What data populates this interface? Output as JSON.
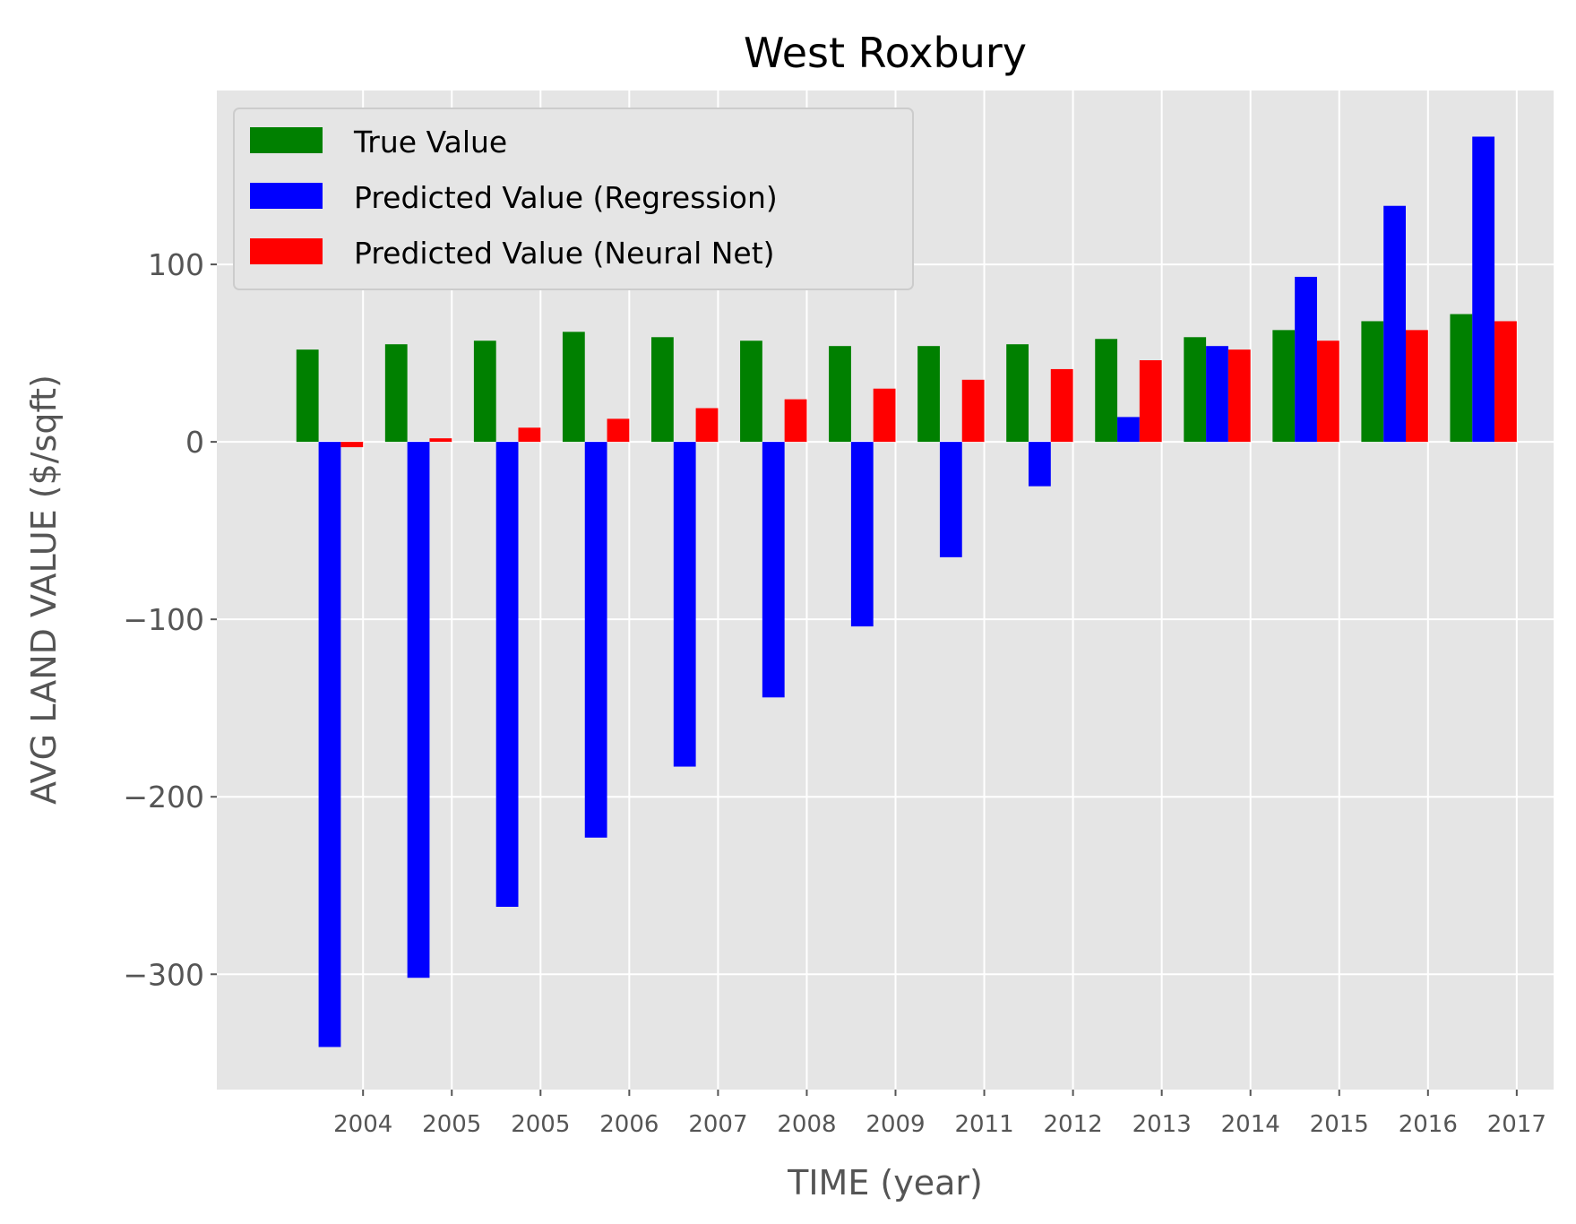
{
  "chart_data": {
    "type": "bar",
    "title": "West Roxbury",
    "xlabel": "TIME (year)",
    "ylabel": "AVG LAND VALUE ($/sqft)",
    "ylim": [
      -365,
      198
    ],
    "yticks": [
      100,
      0,
      -100,
      -200,
      -300
    ],
    "ytick_labels": [
      "100",
      "0",
      "−100",
      "−200",
      "−300"
    ],
    "categories": [
      "2004",
      "2005",
      "2005",
      "2006",
      "2007",
      "2008",
      "2009",
      "2011",
      "2012",
      "2013",
      "2014",
      "2015",
      "2016",
      "2017"
    ],
    "grid": true,
    "legend_position": "top-left",
    "series": [
      {
        "name": "True Value",
        "color": "#008000",
        "values": [
          52,
          55,
          57,
          62,
          59,
          57,
          54,
          54,
          55,
          58,
          59,
          63,
          68,
          72
        ]
      },
      {
        "name": "Predicted Value (Regression)",
        "color": "#0000ff",
        "values": [
          -341,
          -302,
          -262,
          -223,
          -183,
          -144,
          -104,
          -65,
          -25,
          14,
          54,
          93,
          133,
          172
        ]
      },
      {
        "name": "Predicted Value (Neural Net)",
        "color": "#ff0000",
        "values": [
          -3,
          2,
          8,
          13,
          19,
          24,
          30,
          35,
          41,
          46,
          52,
          57,
          63,
          68
        ]
      }
    ]
  }
}
